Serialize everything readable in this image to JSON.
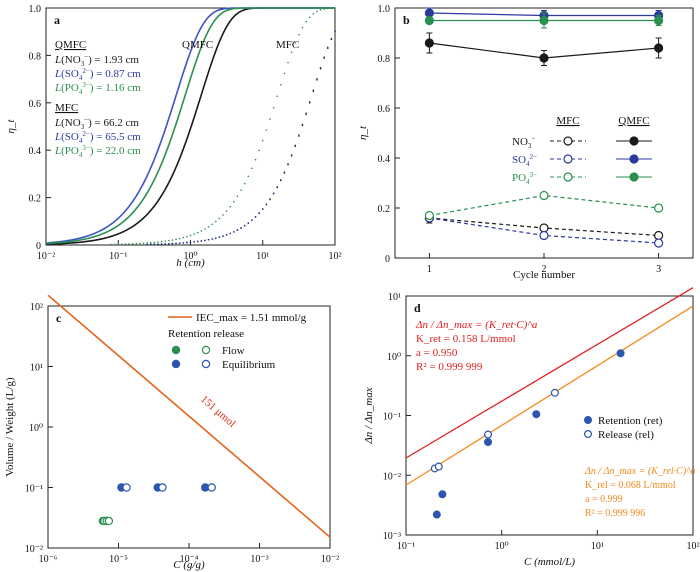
{
  "chart_data": [
    {
      "panel": "a",
      "type": "line",
      "xlabel": "h (cm)",
      "ylabel": "η_t",
      "xscale": "log",
      "xlim": [
        0.01,
        100
      ],
      "ylim": [
        0,
        1.0
      ],
      "x_ticks": [
        "10⁻²",
        "10⁻¹",
        "10⁰",
        "10¹",
        "10²"
      ],
      "y_ticks": [
        "0",
        "0.2",
        "0.4",
        "0.6",
        "0.8",
        "1.0"
      ],
      "curve_labels": [
        "QMFC",
        "MFC"
      ],
      "legend_groups": [
        {
          "title": "QMFC",
          "entries": [
            {
              "ion": "NO3",
              "L_value": "1.93 cm",
              "color": "#1a1a1a"
            },
            {
              "ion": "SO4",
              "L_value": "0.87 cm",
              "color": "#2b3a9b"
            },
            {
              "ion": "PO4",
              "L_value": "1.16 cm",
              "color": "#2a8f4f"
            }
          ]
        },
        {
          "title": "MFC",
          "entries": [
            {
              "ion": "NO3",
              "L_value": "66.2 cm",
              "color": "#1a1a1a"
            },
            {
              "ion": "SO4",
              "L_value": "65.5 cm",
              "color": "#2b3a9b"
            },
            {
              "ion": "PO4",
              "L_value": "22.0 cm",
              "color": "#2a8f4f"
            }
          ]
        }
      ],
      "series": [
        {
          "method": "QMFC",
          "ion": "NO3",
          "L": 1.93,
          "style": "solid",
          "color": "#1a1a1a"
        },
        {
          "method": "QMFC",
          "ion": "SO4",
          "L": 0.87,
          "style": "solid",
          "color": "#3a55c8"
        },
        {
          "method": "QMFC",
          "ion": "PO4",
          "L": 1.16,
          "style": "solid",
          "color": "#2a8f4f"
        },
        {
          "method": "MFC",
          "ion": "NO3",
          "L": 66.2,
          "style": "dotted",
          "color": "#1a1a1a"
        },
        {
          "method": "MFC",
          "ion": "SO4",
          "L": 65.5,
          "style": "dotted",
          "color": "#2b3a9b"
        },
        {
          "method": "MFC",
          "ion": "PO4",
          "L": 22.0,
          "style": "dotted",
          "color": "#2a8f4f"
        }
      ]
    },
    {
      "panel": "b",
      "type": "line",
      "xlabel": "Cycle number",
      "ylabel": "η_t",
      "xlim": [
        0.7,
        3.3
      ],
      "ylim": [
        0,
        1.0
      ],
      "x_ticks": [
        "1",
        "2",
        "3"
      ],
      "y_ticks": [
        "0",
        "0.2",
        "0.4",
        "0.6",
        "0.8",
        "1.0"
      ],
      "legend_headers": [
        "MFC",
        "QMFC"
      ],
      "legend_rows": [
        {
          "ion": "NO3",
          "color": "#1a1a1a"
        },
        {
          "ion": "SO4",
          "color": "#2b3a9b"
        },
        {
          "ion": "PO4",
          "color": "#2a8f4f"
        }
      ],
      "series": [
        {
          "method": "QMFC",
          "ion": "NO3",
          "x": [
            1,
            2,
            3
          ],
          "y": [
            0.86,
            0.8,
            0.84
          ],
          "err": [
            0.04,
            0.03,
            0.04
          ],
          "color": "#1a1a1a",
          "marker": "filled",
          "style": "solid"
        },
        {
          "method": "QMFC",
          "ion": "SO4",
          "x": [
            1,
            2,
            3
          ],
          "y": [
            0.98,
            0.97,
            0.97
          ],
          "err": [
            0.02,
            0.02,
            0.02
          ],
          "color": "#2b3a9b",
          "marker": "filled",
          "style": "solid"
        },
        {
          "method": "QMFC",
          "ion": "PO4",
          "x": [
            1,
            2,
            3
          ],
          "y": [
            0.95,
            0.95,
            0.95
          ],
          "err": [
            0.01,
            0.03,
            0.02
          ],
          "color": "#2a8f4f",
          "marker": "filled",
          "style": "solid"
        },
        {
          "method": "MFC",
          "ion": "NO3",
          "x": [
            1,
            2,
            3
          ],
          "y": [
            0.16,
            0.12,
            0.09
          ],
          "err": [
            0.02,
            0.01,
            0.01
          ],
          "color": "#1a1a1a",
          "marker": "open",
          "style": "dashed"
        },
        {
          "method": "MFC",
          "ion": "SO4",
          "x": [
            1,
            2,
            3
          ],
          "y": [
            0.16,
            0.09,
            0.06
          ],
          "err": [
            0.01,
            0.01,
            0.01
          ],
          "color": "#2b3a9b",
          "marker": "open",
          "style": "dashed"
        },
        {
          "method": "MFC",
          "ion": "PO4",
          "x": [
            1,
            2,
            3
          ],
          "y": [
            0.17,
            0.25,
            0.2
          ],
          "err": [
            0.01,
            0.01,
            0.01
          ],
          "color": "#2a8f4f",
          "marker": "open",
          "style": "dashed"
        }
      ]
    },
    {
      "panel": "c",
      "type": "scatter",
      "xlabel": "C (g/g)",
      "ylabel": "Volume / Weight (L/g)",
      "xscale": "log",
      "yscale": "log",
      "xlim": [
        1e-06,
        0.01
      ],
      "ylim": [
        0.01,
        100
      ],
      "x_ticks": [
        "10⁻⁶",
        "10⁻⁵",
        "10⁻⁴",
        "10⁻³",
        "10⁻²"
      ],
      "y_ticks": [
        "10⁻²",
        "10⁻¹",
        "10⁰",
        "10¹",
        "10²"
      ],
      "legend_line": "IEC_max = 1.51 mmol/g",
      "legend_title": "Retention release",
      "legend_entries": [
        {
          "label": "Flow",
          "color": "#2a8f4f"
        },
        {
          "label": "Equilibrium",
          "color": "#2b55b0"
        }
      ],
      "line_annotation": "151 μmol",
      "line": {
        "x": [
          1e-06,
          0.01
        ],
        "y": [
          151,
          0.0151
        ],
        "color": "#e8611a"
      },
      "series": [
        {
          "group": "Flow",
          "role": "retention",
          "marker": "filled",
          "color": "#2a8f4f",
          "x": [
            6e-06,
            6.5e-06,
            7e-06
          ],
          "y": [
            0.028,
            0.028,
            0.028
          ]
        },
        {
          "group": "Flow",
          "role": "release",
          "marker": "open",
          "color": "#2a8f4f",
          "x": [
            6.3e-06,
            6.8e-06,
            7.3e-06
          ],
          "y": [
            0.028,
            0.028,
            0.028
          ]
        },
        {
          "group": "Equilibrium",
          "role": "retention",
          "marker": "filled",
          "color": "#2b55b0",
          "x": [
            1.1e-05,
            3.6e-05,
            0.00017
          ],
          "y": [
            0.1,
            0.1,
            0.1
          ]
        },
        {
          "group": "Equilibrium",
          "role": "release",
          "marker": "open",
          "color": "#2b55b0",
          "x": [
            1.3e-05,
            4.2e-05,
            0.00021
          ],
          "y": [
            0.1,
            0.1,
            0.1
          ]
        }
      ]
    },
    {
      "panel": "d",
      "type": "scatter",
      "xlabel": "C (mmol/L)",
      "ylabel": "Δn / Δn_max",
      "xscale": "log",
      "yscale": "log",
      "xlim": [
        0.1,
        100
      ],
      "ylim": [
        0.001,
        10
      ],
      "x_ticks": [
        "10⁻¹",
        "10⁰",
        "10¹",
        "10²"
      ],
      "y_ticks": [
        "10⁻³",
        "10⁻²",
        "10⁻¹",
        "10⁰",
        "10¹"
      ],
      "fit_ret": {
        "equation": "Δn / Δn_max = (K_ret·C)^a",
        "K": "K_ret = 0.158 L/mmol",
        "a": "a = 0.950",
        "R2": "R² = 0.999 999",
        "K_value": 0.158,
        "a_value": 0.95,
        "color": "#e02020"
      },
      "fit_rel": {
        "equation": "Δn / Δn_max = (K_rel·C)^a",
        "K": "K_rel = 0.068 L/mmol",
        "a": "a = 0.999",
        "R2": "R² = 0.999 996",
        "K_value": 0.068,
        "a_value": 0.999,
        "color": "#f08a1c"
      },
      "legend_entries": [
        {
          "label": "Retention (ret)",
          "marker": "filled",
          "color": "#2b55b0"
        },
        {
          "label": "Release (rel)",
          "marker": "open",
          "color": "#2b55b0"
        }
      ],
      "series": [
        {
          "name": "Retention (ret)",
          "marker": "filled",
          "color": "#2b55b0",
          "x": [
            0.21,
            0.24,
            0.72,
            2.3,
            17.5
          ],
          "y": [
            0.0022,
            0.0048,
            0.036,
            0.105,
            1.1
          ]
        },
        {
          "name": "Release (rel)",
          "marker": "open",
          "color": "#2b55b0",
          "x": [
            0.2,
            0.22,
            0.72,
            3.6
          ],
          "y": [
            0.013,
            0.014,
            0.048,
            0.24
          ]
        }
      ]
    }
  ]
}
